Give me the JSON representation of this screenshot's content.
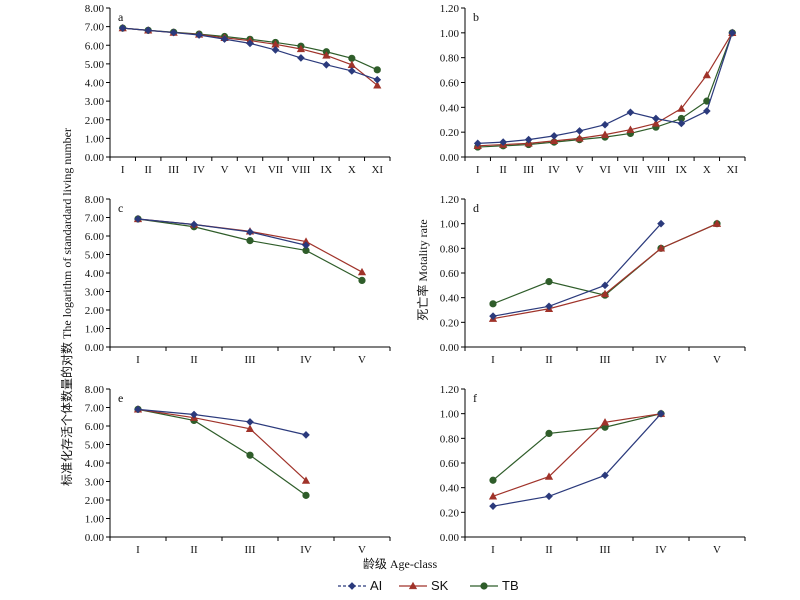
{
  "colors": {
    "AI": "#2b3a7c",
    "SK": "#a0332a",
    "TB": "#2f5d2a",
    "axis": "#000000"
  },
  "figure": {
    "left_ylabel": "标准化存活个体数量的对数 The logarithm of standardard living number",
    "right_ylabel": "死亡率  Motality rate",
    "xlabel": "龄级  Age-class"
  },
  "legend": [
    {
      "key": "AI",
      "label": "AI"
    },
    {
      "key": "SK",
      "label": "SK"
    },
    {
      "key": "TB",
      "label": "TB"
    }
  ],
  "chart_data": [
    {
      "id": "a",
      "type": "line",
      "letter": "a",
      "categories": [
        "I",
        "II",
        "III",
        "IV",
        "V",
        "VI",
        "VII",
        "VIII",
        "IX",
        "X",
        "XI"
      ],
      "ylim": [
        0,
        8
      ],
      "yticks": [
        "0.00",
        "1.00",
        "2.00",
        "3.00",
        "4.00",
        "5.00",
        "6.00",
        "7.00",
        "8.00"
      ],
      "series": [
        {
          "name": "AI",
          "values": [
            6.92,
            6.8,
            6.68,
            6.55,
            6.33,
            6.1,
            5.75,
            5.32,
            4.95,
            4.62,
            4.15
          ]
        },
        {
          "name": "SK",
          "values": [
            6.92,
            6.8,
            6.68,
            6.58,
            6.4,
            6.25,
            6.05,
            5.8,
            5.45,
            4.95,
            3.85
          ]
        },
        {
          "name": "TB",
          "values": [
            6.92,
            6.8,
            6.7,
            6.6,
            6.47,
            6.32,
            6.15,
            5.95,
            5.65,
            5.3,
            4.68
          ]
        }
      ]
    },
    {
      "id": "b",
      "type": "line",
      "letter": "b",
      "categories": [
        "I",
        "II",
        "III",
        "IV",
        "V",
        "VI",
        "VII",
        "VIII",
        "IX",
        "X",
        "XI"
      ],
      "ylim": [
        0,
        1.2
      ],
      "yticks": [
        "0.00",
        "0.20",
        "0.40",
        "0.60",
        "0.80",
        "1.00",
        "1.20"
      ],
      "series": [
        {
          "name": "AI",
          "values": [
            0.11,
            0.12,
            0.14,
            0.17,
            0.21,
            0.26,
            0.36,
            0.31,
            0.27,
            0.37,
            1.0
          ]
        },
        {
          "name": "SK",
          "values": [
            0.09,
            0.1,
            0.11,
            0.13,
            0.15,
            0.18,
            0.22,
            0.27,
            0.39,
            0.66,
            1.0
          ]
        },
        {
          "name": "TB",
          "values": [
            0.08,
            0.09,
            0.1,
            0.12,
            0.14,
            0.16,
            0.19,
            0.24,
            0.31,
            0.45,
            1.0
          ]
        }
      ]
    },
    {
      "id": "c",
      "type": "line",
      "letter": "c",
      "categories": [
        "I",
        "II",
        "III",
        "IV",
        "V"
      ],
      "ylim": [
        0,
        8
      ],
      "yticks": [
        "0.00",
        "1.00",
        "2.00",
        "3.00",
        "4.00",
        "5.00",
        "6.00",
        "7.00",
        "8.00"
      ],
      "series": [
        {
          "name": "AI",
          "values": [
            6.92,
            6.62,
            6.22,
            5.5,
            null
          ]
        },
        {
          "name": "SK",
          "values": [
            6.92,
            6.62,
            6.25,
            5.7,
            4.05
          ]
        },
        {
          "name": "TB",
          "values": [
            6.92,
            6.5,
            5.75,
            5.22,
            3.6
          ]
        }
      ]
    },
    {
      "id": "d",
      "type": "line",
      "letter": "d",
      "categories": [
        "I",
        "II",
        "III",
        "IV",
        "V"
      ],
      "ylim": [
        0,
        1.2
      ],
      "yticks": [
        "0.00",
        "0.20",
        "0.40",
        "0.60",
        "0.80",
        "1.00",
        "1.20"
      ],
      "series": [
        {
          "name": "AI",
          "values": [
            0.25,
            0.33,
            0.5,
            1.0,
            null
          ]
        },
        {
          "name": "SK",
          "values": [
            0.23,
            0.31,
            0.43,
            0.8,
            1.0
          ]
        },
        {
          "name": "TB",
          "values": [
            0.35,
            0.53,
            0.42,
            0.8,
            1.0
          ]
        }
      ]
    },
    {
      "id": "e",
      "type": "line",
      "letter": "e",
      "categories": [
        "I",
        "II",
        "III",
        "IV",
        "V"
      ],
      "ylim": [
        0,
        8
      ],
      "yticks": [
        "0.00",
        "1.00",
        "2.00",
        "3.00",
        "4.00",
        "5.00",
        "6.00",
        "7.00",
        "8.00"
      ],
      "series": [
        {
          "name": "AI",
          "values": [
            6.9,
            6.62,
            6.22,
            5.52,
            null
          ]
        },
        {
          "name": "SK",
          "values": [
            6.9,
            6.45,
            5.85,
            3.05,
            null
          ]
        },
        {
          "name": "TB",
          "values": [
            6.9,
            6.3,
            4.42,
            2.25,
            null
          ]
        }
      ]
    },
    {
      "id": "f",
      "type": "line",
      "letter": "f",
      "categories": [
        "I",
        "II",
        "III",
        "IV",
        "V"
      ],
      "ylim": [
        0,
        1.2
      ],
      "yticks": [
        "0.00",
        "0.20",
        "0.40",
        "0.60",
        "0.80",
        "1.00",
        "1.20"
      ],
      "series": [
        {
          "name": "AI",
          "values": [
            0.25,
            0.33,
            0.5,
            1.0,
            null
          ]
        },
        {
          "name": "SK",
          "values": [
            0.33,
            0.49,
            0.93,
            1.0,
            null
          ]
        },
        {
          "name": "TB",
          "values": [
            0.46,
            0.84,
            0.89,
            1.0,
            null
          ]
        }
      ]
    }
  ]
}
